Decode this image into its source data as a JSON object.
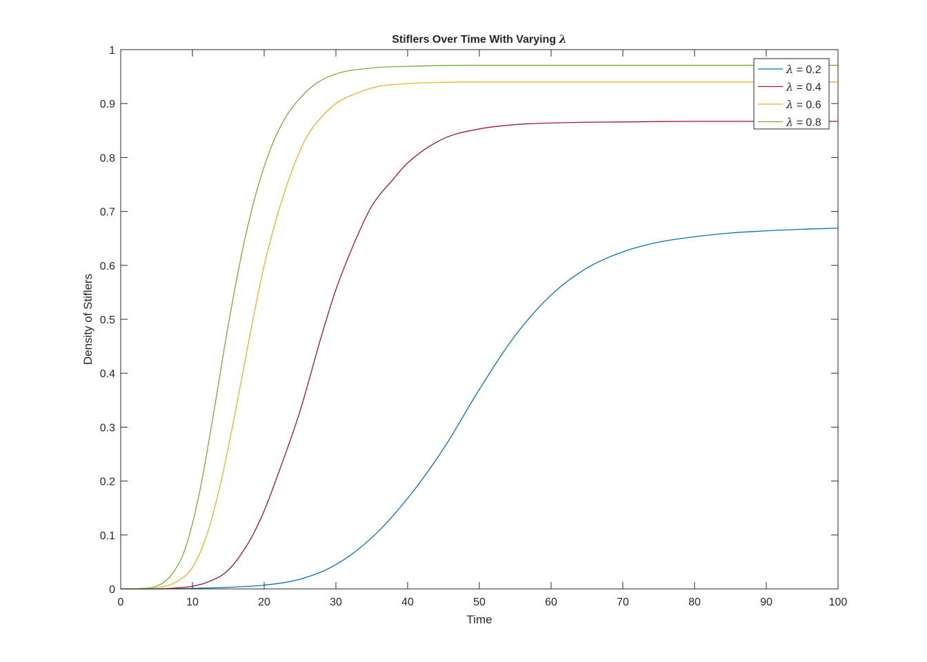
{
  "chart_data": {
    "type": "line",
    "title_prefix": "Stiflers Over Time With Varying ",
    "title_symbol": "λ",
    "xlabel": "Time",
    "ylabel": "Density of Stiflers",
    "xlim": [
      0,
      100
    ],
    "ylim": [
      0,
      1
    ],
    "xticks": [
      "0",
      "10",
      "20",
      "30",
      "40",
      "50",
      "60",
      "70",
      "80",
      "90",
      "100"
    ],
    "yticks": [
      "0",
      "0.1",
      "0.2",
      "0.3",
      "0.4",
      "0.5",
      "0.6",
      "0.7",
      "0.8",
      "0.9",
      "1"
    ],
    "grid": false,
    "legend_position": "top-right",
    "legend_symbol": "λ",
    "series": [
      {
        "name": "= 0.2",
        "color": "#0072BD",
        "points": [
          [
            0,
            0
          ],
          [
            5,
            0
          ],
          [
            10,
            0.001
          ],
          [
            15,
            0.003
          ],
          [
            20,
            0.007
          ],
          [
            25,
            0.018
          ],
          [
            30,
            0.045
          ],
          [
            35,
            0.095
          ],
          [
            40,
            0.168
          ],
          [
            45,
            0.26
          ],
          [
            50,
            0.37
          ],
          [
            55,
            0.47
          ],
          [
            60,
            0.545
          ],
          [
            65,
            0.595
          ],
          [
            70,
            0.625
          ],
          [
            75,
            0.643
          ],
          [
            80,
            0.653
          ],
          [
            85,
            0.66
          ],
          [
            90,
            0.664
          ],
          [
            95,
            0.667
          ],
          [
            100,
            0.669
          ]
        ]
      },
      {
        "name": "= 0.4",
        "color": "#A2142F",
        "points": [
          [
            0,
            0
          ],
          [
            5,
            0
          ],
          [
            8,
            0.002
          ],
          [
            10,
            0.005
          ],
          [
            12,
            0.012
          ],
          [
            15,
            0.035
          ],
          [
            18,
            0.09
          ],
          [
            20,
            0.145
          ],
          [
            22,
            0.215
          ],
          [
            25,
            0.33
          ],
          [
            28,
            0.47
          ],
          [
            30,
            0.555
          ],
          [
            33,
            0.655
          ],
          [
            35,
            0.71
          ],
          [
            38,
            0.76
          ],
          [
            40,
            0.79
          ],
          [
            45,
            0.835
          ],
          [
            50,
            0.853
          ],
          [
            55,
            0.861
          ],
          [
            60,
            0.864
          ],
          [
            70,
            0.866
          ],
          [
            80,
            0.867
          ],
          [
            90,
            0.867
          ],
          [
            100,
            0.867
          ]
        ]
      },
      {
        "name": "= 0.6",
        "color": "#EDB120",
        "points": [
          [
            0,
            0
          ],
          [
            4,
            0.001
          ],
          [
            6,
            0.004
          ],
          [
            8,
            0.015
          ],
          [
            10,
            0.04
          ],
          [
            12,
            0.1
          ],
          [
            14,
            0.2
          ],
          [
            16,
            0.33
          ],
          [
            18,
            0.47
          ],
          [
            20,
            0.6
          ],
          [
            22,
            0.7
          ],
          [
            24,
            0.78
          ],
          [
            26,
            0.84
          ],
          [
            28,
            0.875
          ],
          [
            30,
            0.9
          ],
          [
            33,
            0.92
          ],
          [
            36,
            0.932
          ],
          [
            40,
            0.937
          ],
          [
            50,
            0.94
          ],
          [
            60,
            0.94
          ],
          [
            80,
            0.94
          ],
          [
            100,
            0.94
          ]
        ]
      },
      {
        "name": "= 0.8",
        "color": "#77AC30",
        "points": [
          [
            0,
            0
          ],
          [
            3,
            0.001
          ],
          [
            5,
            0.005
          ],
          [
            7,
            0.025
          ],
          [
            9,
            0.075
          ],
          [
            11,
            0.18
          ],
          [
            13,
            0.33
          ],
          [
            15,
            0.49
          ],
          [
            17,
            0.63
          ],
          [
            19,
            0.74
          ],
          [
            21,
            0.82
          ],
          [
            23,
            0.875
          ],
          [
            25,
            0.91
          ],
          [
            27,
            0.935
          ],
          [
            30,
            0.955
          ],
          [
            35,
            0.966
          ],
          [
            40,
            0.969
          ],
          [
            50,
            0.971
          ],
          [
            60,
            0.971
          ],
          [
            80,
            0.971
          ],
          [
            100,
            0.971
          ]
        ]
      }
    ]
  }
}
